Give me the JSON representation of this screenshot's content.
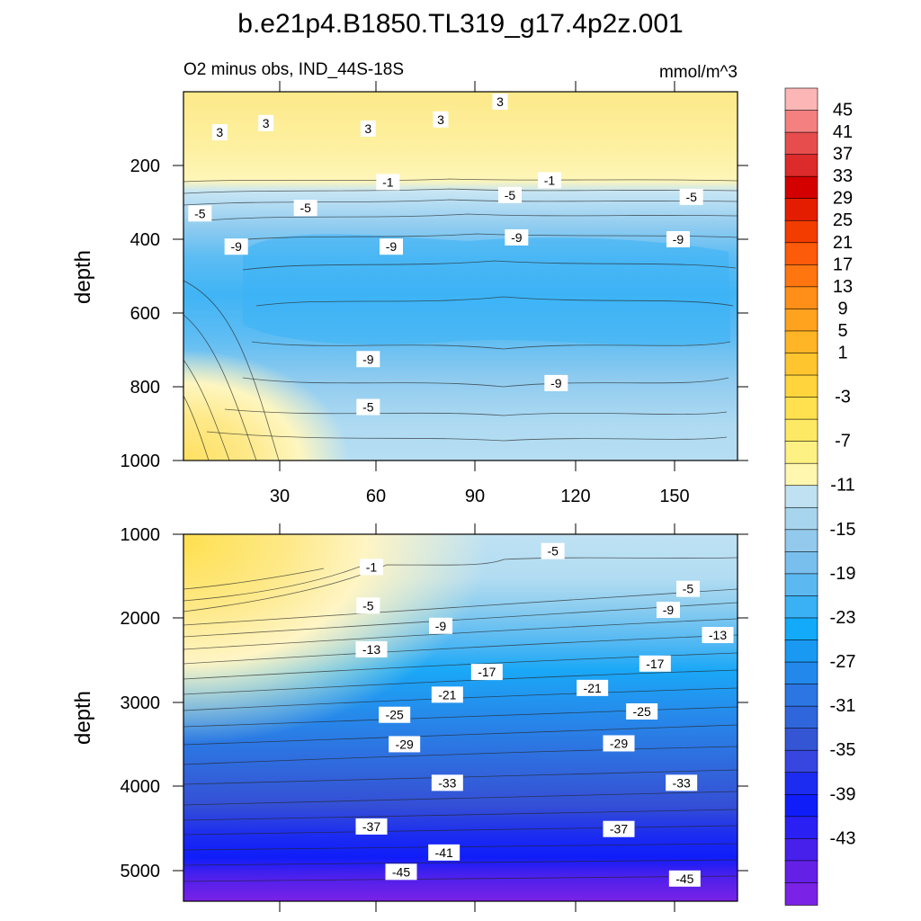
{
  "chart_data": [
    {
      "type": "heatmap",
      "title": "b.e21p4.B1850.TL319_g17.4p2z.001",
      "subtitle_left": "O2 minus obs, IND_44S-18S",
      "subtitle_right": "mmol/m^3",
      "xlabel": "",
      "ylabel": "depth",
      "xlim": [
        2,
        170
      ],
      "ylim": [
        1000,
        0
      ],
      "xticks": [
        "30",
        "60",
        "90",
        "120",
        "150"
      ],
      "yticks": [
        "200",
        "400",
        "600",
        "800",
        "1000"
      ],
      "contour_labels": [
        {
          "text": "3",
          "x": 80,
          "y": 75
        },
        {
          "text": "3",
          "x": 98,
          "y": 27
        },
        {
          "text": "3",
          "x": 27,
          "y": 85
        },
        {
          "text": "3",
          "x": 13,
          "y": 110
        },
        {
          "text": "3",
          "x": 58,
          "y": 100
        },
        {
          "text": "-1",
          "x": 64,
          "y": 245
        },
        {
          "text": "-1",
          "x": 113,
          "y": 240
        },
        {
          "text": "-5",
          "x": 7,
          "y": 330
        },
        {
          "text": "-5",
          "x": 39,
          "y": 315
        },
        {
          "text": "-5",
          "x": 101,
          "y": 280
        },
        {
          "text": "-5",
          "x": 156,
          "y": 285
        },
        {
          "text": "-9",
          "x": 18,
          "y": 420
        },
        {
          "text": "-9",
          "x": 65,
          "y": 420
        },
        {
          "text": "-9",
          "x": 103,
          "y": 395
        },
        {
          "text": "-9",
          "x": 152,
          "y": 400
        },
        {
          "text": "-9",
          "x": 58,
          "y": 725
        },
        {
          "text": "-9",
          "x": 115,
          "y": 790
        },
        {
          "text": "-5",
          "x": 58,
          "y": 855
        }
      ]
    },
    {
      "type": "heatmap",
      "xlabel": "",
      "ylabel": "depth",
      "xlim": [
        2,
        170
      ],
      "ylim": [
        5370,
        1000
      ],
      "yticks": [
        "1000",
        "2000",
        "3000",
        "4000",
        "5000"
      ],
      "contour_labels": [
        {
          "text": "-1",
          "x": 59,
          "y": 1390
        },
        {
          "text": "-5",
          "x": 114,
          "y": 1200
        },
        {
          "text": "-5",
          "x": 155,
          "y": 1650
        },
        {
          "text": "-5",
          "x": 58,
          "y": 1850
        },
        {
          "text": "-9",
          "x": 80,
          "y": 2090
        },
        {
          "text": "-9",
          "x": 149,
          "y": 1900
        },
        {
          "text": "-13",
          "x": 164,
          "y": 2200
        },
        {
          "text": "-13",
          "x": 59,
          "y": 2370
        },
        {
          "text": "-17",
          "x": 94,
          "y": 2640
        },
        {
          "text": "-17",
          "x": 145,
          "y": 2540
        },
        {
          "text": "-21",
          "x": 82,
          "y": 2910
        },
        {
          "text": "-21",
          "x": 126,
          "y": 2830
        },
        {
          "text": "-25",
          "x": 66,
          "y": 3150
        },
        {
          "text": "-25",
          "x": 141,
          "y": 3110
        },
        {
          "text": "-29",
          "x": 69,
          "y": 3500
        },
        {
          "text": "-29",
          "x": 134,
          "y": 3490
        },
        {
          "text": "-33",
          "x": 82,
          "y": 3960
        },
        {
          "text": "-33",
          "x": 153,
          "y": 3960
        },
        {
          "text": "-37",
          "x": 59,
          "y": 4480
        },
        {
          "text": "-37",
          "x": 134,
          "y": 4510
        },
        {
          "text": "-41",
          "x": 81,
          "y": 4790
        },
        {
          "text": "-45",
          "x": 68,
          "y": 5020
        },
        {
          "text": "-45",
          "x": 154,
          "y": 5100
        }
      ]
    }
  ],
  "colorbar": {
    "labels": [
      "45",
      "41",
      "37",
      "33",
      "29",
      "25",
      "21",
      "17",
      "13",
      "9",
      "5",
      "1",
      "-3",
      "-7",
      "-11",
      "-15",
      "-19",
      "-23",
      "-27",
      "-31",
      "-35",
      "-39",
      "-43"
    ],
    "colors": [
      "#fcb6b6",
      "#f48080",
      "#e84d4d",
      "#dd2a2a",
      "#d40000",
      "#e51d00",
      "#f23c00",
      "#fd5a0a",
      "#ff7510",
      "#ff8f18",
      "#ffa21e",
      "#ffb525",
      "#ffc52e",
      "#ffd43c",
      "#ffe04e",
      "#fee965",
      "#fef183",
      "#fff7b0",
      "#c0e1f1",
      "#a8d5ee",
      "#92c9ec",
      "#79bfee",
      "#5cb8f1",
      "#3ab0f5",
      "#12aaf9",
      "#1a99f3",
      "#2388ec",
      "#2b76e3",
      "#2f66dc",
      "#3456d4",
      "#3746e0",
      "#1d2cf1",
      "#0f1df9",
      "#2a20f3",
      "#4820ec",
      "#6420e6",
      "#7a22e6"
    ]
  }
}
